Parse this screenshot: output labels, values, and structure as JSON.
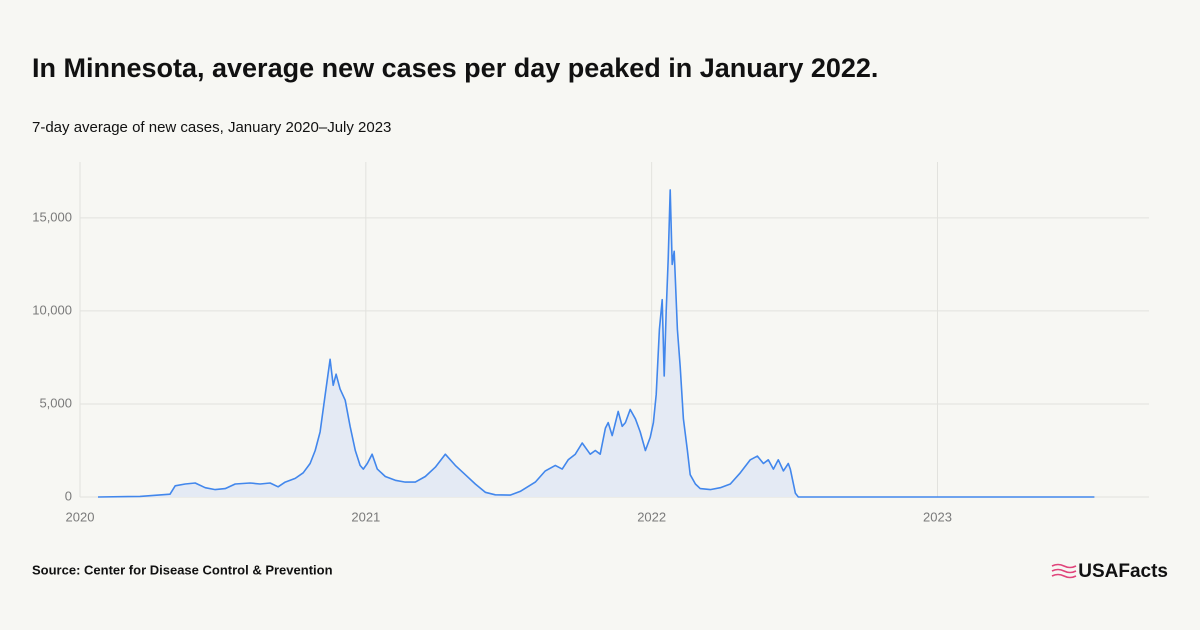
{
  "chart_data": {
    "type": "line",
    "title": "In Minnesota, average new cases per day peaked in January 2022.",
    "subtitle": "7-day average of new cases, January 2020–July 2023",
    "source": "Source: Center for Disease Control & Prevention",
    "color": "#4287ec",
    "fill": "#e4eaf4",
    "grid": true,
    "xlim": [
      2020,
      2023.74
    ],
    "xticks": [
      2020,
      2021,
      2022,
      2023
    ],
    "ylim": [
      0,
      18000
    ],
    "yticks": [
      0,
      {
        "value": 5000,
        "label": "5,000"
      },
      {
        "value": 10000,
        "label": "10,000"
      },
      {
        "value": 15000,
        "label": "15,000"
      }
    ],
    "series": [
      {
        "name": "7-day average of new cases",
        "x": [
          2020.063,
          2020.21,
          2020.315,
          2020.333,
          2020.368,
          2020.403,
          2020.438,
          2020.473,
          2020.508,
          2020.543,
          2020.595,
          2020.63,
          2020.665,
          2020.693,
          2020.718,
          2020.753,
          2020.781,
          2020.805,
          2020.823,
          2020.84,
          2020.858,
          2020.875,
          2020.886,
          2020.896,
          2020.91,
          2020.928,
          2020.945,
          2020.963,
          2020.98,
          2020.991,
          2021.005,
          2021.022,
          2021.04,
          2021.068,
          2021.103,
          2021.138,
          2021.173,
          2021.208,
          2021.243,
          2021.278,
          2021.313,
          2021.348,
          2021.383,
          2021.418,
          2021.453,
          2021.505,
          2021.54,
          2021.593,
          2021.628,
          2021.663,
          2021.687,
          2021.708,
          2021.733,
          2021.757,
          2021.785,
          2021.803,
          2021.82,
          2021.838,
          2021.848,
          2021.862,
          2021.883,
          2021.897,
          2021.908,
          2021.925,
          2021.943,
          2021.96,
          2021.978,
          2021.995,
          2022.006,
          2022.016,
          2022.027,
          2022.037,
          2022.044,
          2022.051,
          2022.058,
          2022.065,
          2022.072,
          2022.079,
          2022.09,
          2022.1,
          2022.111,
          2022.125,
          2022.135,
          2022.153,
          2022.17,
          2022.205,
          2022.24,
          2022.275,
          2022.31,
          2022.345,
          2022.37,
          2022.391,
          2022.408,
          2022.426,
          2022.443,
          2022.461,
          2022.478,
          2022.485,
          2022.503,
          2022.513,
          2023.549
        ],
        "values": [
          0,
          30,
          150,
          600,
          700,
          750,
          500,
          400,
          450,
          700,
          750,
          700,
          750,
          550,
          800,
          1000,
          1300,
          1800,
          2500,
          3500,
          5500,
          7400,
          6000,
          6600,
          5800,
          5200,
          3800,
          2500,
          1700,
          1500,
          1800,
          2300,
          1500,
          1100,
          900,
          800,
          800,
          1100,
          1600,
          2300,
          1700,
          1200,
          700,
          250,
          120,
          100,
          300,
          800,
          1400,
          1700,
          1500,
          2000,
          2300,
          2900,
          2300,
          2500,
          2300,
          3700,
          4000,
          3300,
          4600,
          3800,
          4000,
          4700,
          4200,
          3500,
          2500,
          3200,
          4000,
          5500,
          9000,
          10600,
          6500,
          10000,
          12800,
          16500,
          12500,
          13200,
          9000,
          7000,
          4200,
          2500,
          1200,
          700,
          450,
          400,
          500,
          700,
          1300,
          2000,
          2200,
          1800,
          2000,
          1500,
          2000,
          1400,
          1800,
          1500,
          200,
          0,
          0
        ]
      }
    ]
  },
  "logo": "USAFacts"
}
